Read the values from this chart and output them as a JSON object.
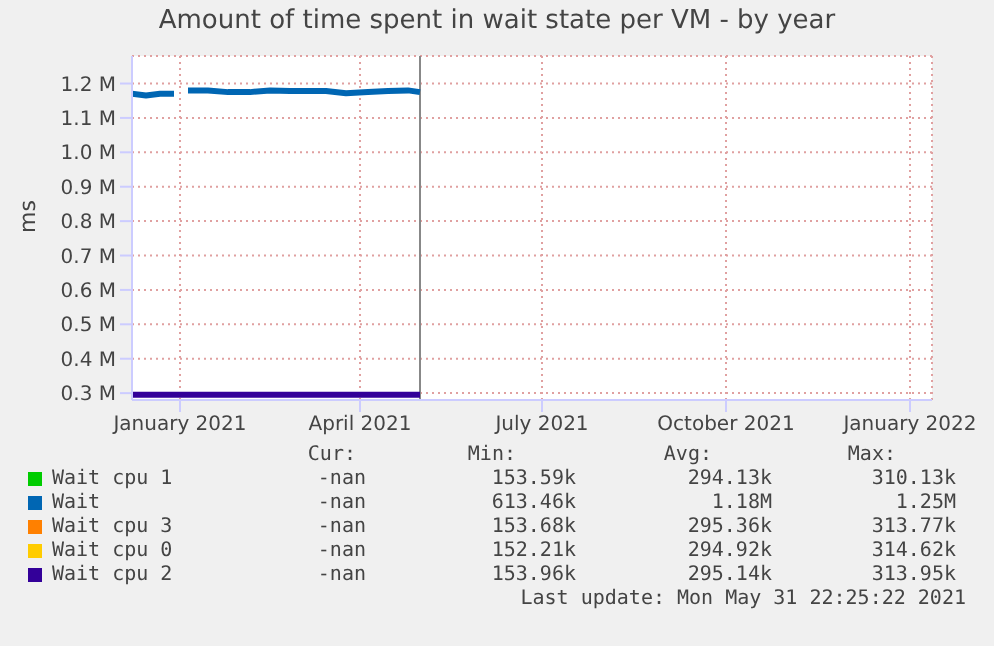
{
  "chart_data": {
    "type": "line",
    "title": "Amount of time spent in wait state per VM - by year",
    "ylabel": "ms",
    "x": [
      "2020-12-08",
      "2020-12-15",
      "2020-12-22",
      "2020-12-29",
      "2021-01-01",
      "2021-01-05",
      "2021-01-15",
      "2021-01-25",
      "2021-02-05",
      "2021-02-15",
      "2021-02-25",
      "2021-03-05",
      "2021-03-15",
      "2021-03-25",
      "2021-04-05",
      "2021-04-15",
      "2021-04-25",
      "2021-05-01"
    ],
    "series": [
      {
        "name": "Wait cpu 1",
        "color": "#00cc00",
        "values": [
          null,
          null,
          null,
          null,
          null,
          null,
          null,
          null,
          null,
          null,
          null,
          null,
          null,
          null,
          null,
          null,
          null,
          null
        ]
      },
      {
        "name": "Wait",
        "color": "#0066b3",
        "values": [
          1170000,
          1165000,
          1170000,
          1170000,
          null,
          1180000,
          1180000,
          1175000,
          1175000,
          1180000,
          1178000,
          1178000,
          1178000,
          1172000,
          1175000,
          1178000,
          1180000,
          1175000
        ]
      },
      {
        "name": "Wait cpu 3",
        "color": "#ff8000",
        "values": [
          null,
          null,
          null,
          null,
          null,
          null,
          null,
          null,
          null,
          null,
          null,
          null,
          null,
          null,
          null,
          null,
          null,
          null
        ]
      },
      {
        "name": "Wait cpu 0",
        "color": "#ffcc00",
        "values": [
          null,
          null,
          null,
          null,
          null,
          null,
          null,
          null,
          null,
          null,
          null,
          null,
          null,
          null,
          null,
          null,
          null,
          null
        ]
      },
      {
        "name": "Wait cpu 2",
        "color": "#330099",
        "values": [
          295000,
          295000,
          295000,
          295000,
          295000,
          295000,
          295000,
          295000,
          295000,
          295000,
          295000,
          295000,
          295000,
          295000,
          295000,
          295000,
          295000,
          295000
        ]
      }
    ],
    "xlim": [
      "2020-12-08",
      "2022-01-12"
    ],
    "xticks": [
      {
        "value": "2021-01-01",
        "label": "January 2021"
      },
      {
        "value": "2021-04-01",
        "label": "April 2021"
      },
      {
        "value": "2021-07-01",
        "label": "July 2021"
      },
      {
        "value": "2021-10-01",
        "label": "October 2021"
      },
      {
        "value": "2022-01-01",
        "label": "January 2022"
      }
    ],
    "ylim": [
      280000,
      1280000
    ],
    "yticks": [
      {
        "value": 300000,
        "label": "0.3 M"
      },
      {
        "value": 400000,
        "label": "0.4 M"
      },
      {
        "value": 500000,
        "label": "0.5 M"
      },
      {
        "value": 600000,
        "label": "0.6 M"
      },
      {
        "value": 700000,
        "label": "0.7 M"
      },
      {
        "value": 800000,
        "label": "0.8 M"
      },
      {
        "value": 900000,
        "label": "0.9 M"
      },
      {
        "value": 1000000,
        "label": "1.0 M"
      },
      {
        "value": 1100000,
        "label": "1.1 M"
      },
      {
        "value": 1200000,
        "label": "1.2 M"
      }
    ],
    "ref_lines": [
      {
        "axis": "x",
        "value": "2021-05-01",
        "color": "#888888"
      }
    ],
    "grid": true,
    "legend": "bottom",
    "marker": "none",
    "line_style": "solid",
    "annotations": [
      "Cur:",
      "Min:",
      "Avg:",
      "Max:",
      "-nan",
      "153.59k",
      "294.13k",
      "310.13k",
      "-nan",
      "613.46k",
      "1.18M",
      "1.25M",
      "-nan",
      "153.68k",
      "295.36k",
      "313.77k",
      "-nan",
      "152.21k",
      "294.92k",
      "314.62k",
      "-nan",
      "153.96k",
      "295.14k",
      "313.95k",
      "Last update: Mon May 31 22:25:22 2021"
    ]
  }
}
